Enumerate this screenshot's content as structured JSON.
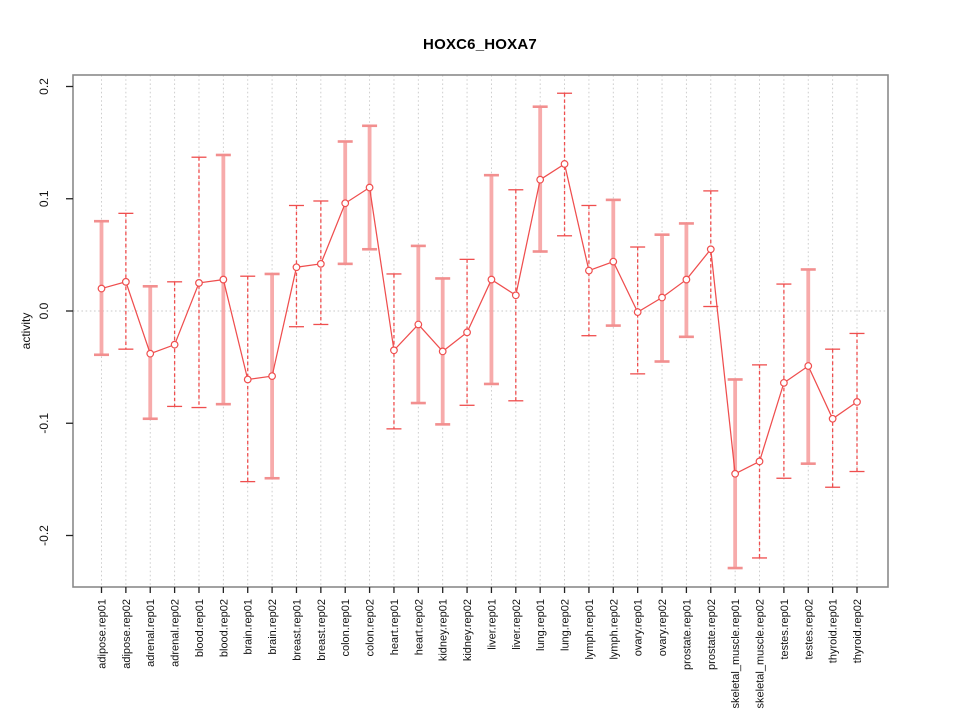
{
  "chart_data": {
    "type": "scatter",
    "title": "HOXC6_HOXA7",
    "xlabel": "",
    "ylabel": "activity",
    "ylim": [
      -0.246,
      0.21
    ],
    "yticks": [
      -0.2,
      -0.1,
      0.0,
      0.1,
      0.2
    ],
    "ytick_labels": [
      "-0.2",
      "-0.1",
      "0.0",
      "0.1",
      "0.2"
    ],
    "grid": {
      "vertical_dotted_per_category": true,
      "horizontal_zero_line_dotted": true
    },
    "legend": "none",
    "colors": {
      "point_and_line": "#ef4e4e",
      "thick_error_bar": "#f7abab",
      "thick_error_bar_tick": "#f28f8f",
      "gridline": "#c9c9c9",
      "plot_border": "#8a8a8a",
      "axis_text": "#111111"
    },
    "categories": [
      "adipose.rep01",
      "adipose.rep02",
      "adrenal.rep01",
      "adrenal.rep02",
      "blood.rep01",
      "blood.rep02",
      "brain.rep01",
      "brain.rep02",
      "breast.rep01",
      "breast.rep02",
      "colon.rep01",
      "colon.rep02",
      "heart.rep01",
      "heart.rep02",
      "kidney.rep01",
      "kidney.rep02",
      "liver.rep01",
      "liver.rep02",
      "lung.rep01",
      "lung.rep02",
      "lymph.rep01",
      "lymph.rep02",
      "ovary.rep01",
      "ovary.rep02",
      "prostate.rep01",
      "prostate.rep02",
      "skeletal_muscle.rep01",
      "skeletal_muscle.rep02",
      "testes.rep01",
      "testes.rep02",
      "thyroid.rep01",
      "thyroid.rep02"
    ],
    "points": [
      {
        "label": "adipose.rep01",
        "value": 0.02,
        "upper": 0.08,
        "lower": -0.039,
        "bar": "thick"
      },
      {
        "label": "adipose.rep02",
        "value": 0.026,
        "upper": 0.087,
        "lower": -0.034,
        "bar": "dashed"
      },
      {
        "label": "adrenal.rep01",
        "value": -0.038,
        "upper": 0.022,
        "lower": -0.096,
        "bar": "thick"
      },
      {
        "label": "adrenal.rep02",
        "value": -0.03,
        "upper": 0.026,
        "lower": -0.085,
        "bar": "dashed"
      },
      {
        "label": "blood.rep01",
        "value": 0.025,
        "upper": 0.137,
        "lower": -0.086,
        "bar": "dashed"
      },
      {
        "label": "blood.rep02",
        "value": 0.028,
        "upper": 0.139,
        "lower": -0.083,
        "bar": "thick"
      },
      {
        "label": "brain.rep01",
        "value": -0.061,
        "upper": 0.031,
        "lower": -0.152,
        "bar": "dashed"
      },
      {
        "label": "brain.rep02",
        "value": -0.058,
        "upper": 0.033,
        "lower": -0.149,
        "bar": "thick"
      },
      {
        "label": "breast.rep01",
        "value": 0.039,
        "upper": 0.094,
        "lower": -0.014,
        "bar": "dashed"
      },
      {
        "label": "breast.rep02",
        "value": 0.042,
        "upper": 0.098,
        "lower": -0.012,
        "bar": "dashed"
      },
      {
        "label": "colon.rep01",
        "value": 0.096,
        "upper": 0.151,
        "lower": 0.042,
        "bar": "thick"
      },
      {
        "label": "colon.rep02",
        "value": 0.11,
        "upper": 0.165,
        "lower": 0.055,
        "bar": "thick"
      },
      {
        "label": "heart.rep01",
        "value": -0.035,
        "upper": 0.033,
        "lower": -0.105,
        "bar": "dashed"
      },
      {
        "label": "heart.rep02",
        "value": -0.012,
        "upper": 0.058,
        "lower": -0.082,
        "bar": "thick"
      },
      {
        "label": "kidney.rep01",
        "value": -0.036,
        "upper": 0.029,
        "lower": -0.101,
        "bar": "thick"
      },
      {
        "label": "kidney.rep02",
        "value": -0.019,
        "upper": 0.046,
        "lower": -0.084,
        "bar": "dashed"
      },
      {
        "label": "liver.rep01",
        "value": 0.028,
        "upper": 0.121,
        "lower": -0.065,
        "bar": "thick"
      },
      {
        "label": "liver.rep02",
        "value": 0.014,
        "upper": 0.108,
        "lower": -0.08,
        "bar": "dashed"
      },
      {
        "label": "lung.rep01",
        "value": 0.117,
        "upper": 0.182,
        "lower": 0.053,
        "bar": "thick"
      },
      {
        "label": "lung.rep02",
        "value": 0.131,
        "upper": 0.194,
        "lower": 0.067,
        "bar": "dashed"
      },
      {
        "label": "lymph.rep01",
        "value": 0.036,
        "upper": 0.094,
        "lower": -0.022,
        "bar": "dashed"
      },
      {
        "label": "lymph.rep02",
        "value": 0.044,
        "upper": 0.099,
        "lower": -0.013,
        "bar": "thick"
      },
      {
        "label": "ovary.rep01",
        "value": -0.001,
        "upper": 0.057,
        "lower": -0.056,
        "bar": "dashed"
      },
      {
        "label": "ovary.rep02",
        "value": 0.012,
        "upper": 0.068,
        "lower": -0.045,
        "bar": "thick"
      },
      {
        "label": "prostate.rep01",
        "value": 0.028,
        "upper": 0.078,
        "lower": -0.023,
        "bar": "thick"
      },
      {
        "label": "prostate.rep02",
        "value": 0.055,
        "upper": 0.107,
        "lower": 0.004,
        "bar": "dashed"
      },
      {
        "label": "skeletal_muscle.rep01",
        "value": -0.145,
        "upper": -0.061,
        "lower": -0.229,
        "bar": "thick"
      },
      {
        "label": "skeletal_muscle.rep02",
        "value": -0.134,
        "upper": -0.048,
        "lower": -0.22,
        "bar": "dashed"
      },
      {
        "label": "testes.rep01",
        "value": -0.064,
        "upper": 0.024,
        "lower": -0.149,
        "bar": "dashed"
      },
      {
        "label": "testes.rep02",
        "value": -0.049,
        "upper": 0.037,
        "lower": -0.136,
        "bar": "thick"
      },
      {
        "label": "thyroid.rep01",
        "value": -0.096,
        "upper": -0.034,
        "lower": -0.157,
        "bar": "dashed"
      },
      {
        "label": "thyroid.rep02",
        "value": -0.081,
        "upper": -0.02,
        "lower": -0.143,
        "bar": "dashed"
      }
    ]
  }
}
